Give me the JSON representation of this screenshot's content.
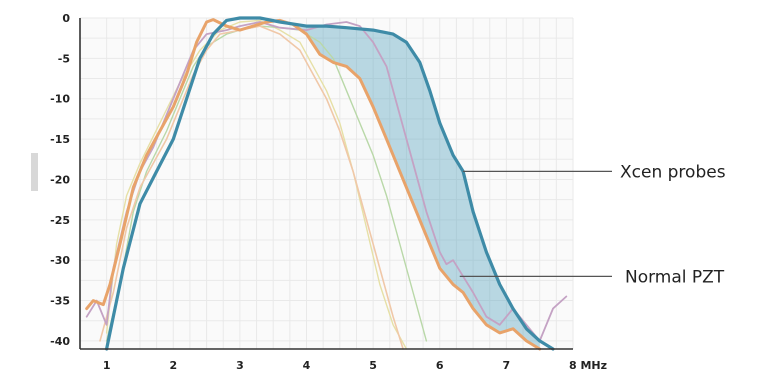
{
  "chart_data": {
    "type": "line",
    "title": "",
    "xlabel": "",
    "ylabel": "",
    "x_unit": "MHz",
    "xlim": [
      0.6,
      8
    ],
    "ylim": [
      -41,
      0
    ],
    "x_ticks": [
      1,
      2,
      3,
      4,
      5,
      6,
      7,
      8
    ],
    "y_ticks": [
      0,
      -5,
      -10,
      -15,
      -20,
      -25,
      -30,
      -35,
      -40
    ],
    "x_tick_labels": [
      "1",
      "2",
      "3",
      "4",
      "5",
      "6",
      "7",
      "8 MHz"
    ],
    "y_tick_labels": [
      "0",
      "-5",
      "-10",
      "-15",
      "-20",
      "-25",
      "-30",
      "-35",
      "-40"
    ],
    "grid": true,
    "shaded_region": "between the Xcen probes curve and the Normal PZT curve",
    "annotations": [
      {
        "text": "Xcen probes",
        "target": "xcen",
        "point": [
          6.35,
          -19
        ]
      },
      {
        "text": "Normal PZT",
        "target": "pzt",
        "point": [
          6.3,
          -32
        ]
      }
    ],
    "series": [
      {
        "key": "xcen",
        "color": "#3e8ba7",
        "points": [
          [
            1.0,
            -41
          ],
          [
            1.1,
            -37
          ],
          [
            1.25,
            -31
          ],
          [
            1.5,
            -23
          ],
          [
            1.75,
            -19
          ],
          [
            2.0,
            -15
          ],
          [
            2.2,
            -10
          ],
          [
            2.4,
            -5
          ],
          [
            2.6,
            -2
          ],
          [
            2.8,
            -0.3
          ],
          [
            3.0,
            0
          ],
          [
            3.3,
            0
          ],
          [
            3.6,
            -0.5
          ],
          [
            4.0,
            -1
          ],
          [
            4.3,
            -1
          ],
          [
            4.6,
            -1.2
          ],
          [
            5.0,
            -1.5
          ],
          [
            5.3,
            -2
          ],
          [
            5.5,
            -3
          ],
          [
            5.7,
            -5.5
          ],
          [
            5.85,
            -9
          ],
          [
            6.0,
            -13
          ],
          [
            6.2,
            -17
          ],
          [
            6.35,
            -19
          ],
          [
            6.5,
            -24
          ],
          [
            6.7,
            -29
          ],
          [
            6.9,
            -33
          ],
          [
            7.1,
            -36
          ],
          [
            7.3,
            -38.5
          ],
          [
            7.5,
            -40
          ],
          [
            7.7,
            -41
          ]
        ]
      },
      {
        "key": "pzt",
        "color": "#e8a36a",
        "points": [
          [
            0.7,
            -36
          ],
          [
            0.8,
            -35
          ],
          [
            0.95,
            -35.5
          ],
          [
            1.05,
            -33
          ],
          [
            1.2,
            -28
          ],
          [
            1.4,
            -21
          ],
          [
            1.6,
            -17
          ],
          [
            1.8,
            -14
          ],
          [
            2.0,
            -11
          ],
          [
            2.2,
            -7
          ],
          [
            2.35,
            -3
          ],
          [
            2.5,
            -0.5
          ],
          [
            2.6,
            -0.2
          ],
          [
            2.8,
            -1
          ],
          [
            3.0,
            -1.5
          ],
          [
            3.2,
            -1
          ],
          [
            3.4,
            -0.5
          ],
          [
            3.6,
            -0.3
          ],
          [
            3.8,
            -0.8
          ],
          [
            4.0,
            -2
          ],
          [
            4.2,
            -4.5
          ],
          [
            4.4,
            -5.5
          ],
          [
            4.6,
            -6
          ],
          [
            4.8,
            -7.5
          ],
          [
            5.0,
            -11
          ],
          [
            5.2,
            -15
          ],
          [
            5.4,
            -19
          ],
          [
            5.6,
            -23
          ],
          [
            5.8,
            -27
          ],
          [
            6.0,
            -31
          ],
          [
            6.2,
            -33
          ],
          [
            6.35,
            -34
          ],
          [
            6.5,
            -36
          ],
          [
            6.7,
            -38
          ],
          [
            6.9,
            -39
          ],
          [
            7.1,
            -38.5
          ],
          [
            7.3,
            -40
          ],
          [
            7.5,
            -41
          ]
        ]
      },
      {
        "key": "mauve",
        "color": "#c4a2c4",
        "points": [
          [
            0.7,
            -37
          ],
          [
            0.85,
            -35
          ],
          [
            1.0,
            -38
          ],
          [
            1.1,
            -31
          ],
          [
            1.3,
            -24
          ],
          [
            1.5,
            -19
          ],
          [
            1.7,
            -16
          ],
          [
            1.9,
            -12
          ],
          [
            2.1,
            -8
          ],
          [
            2.3,
            -4
          ],
          [
            2.5,
            -2
          ],
          [
            2.8,
            -1.5
          ],
          [
            3.0,
            -1
          ],
          [
            3.3,
            -0.5
          ],
          [
            3.6,
            -1.2
          ],
          [
            4.0,
            -1.5
          ],
          [
            4.3,
            -0.8
          ],
          [
            4.6,
            -0.5
          ],
          [
            4.8,
            -1
          ],
          [
            5.0,
            -3
          ],
          [
            5.2,
            -6
          ],
          [
            5.4,
            -12
          ],
          [
            5.6,
            -18
          ],
          [
            5.8,
            -24
          ],
          [
            6.0,
            -29
          ],
          [
            6.1,
            -30.5
          ],
          [
            6.2,
            -30
          ],
          [
            6.35,
            -32
          ],
          [
            6.5,
            -34
          ],
          [
            6.7,
            -37
          ],
          [
            6.9,
            -38
          ],
          [
            7.1,
            -36
          ],
          [
            7.3,
            -38
          ],
          [
            7.5,
            -40
          ],
          [
            7.7,
            -36
          ],
          [
            7.9,
            -34.5
          ]
        ]
      },
      {
        "key": "yellow",
        "color": "#e6e0a6",
        "points": [
          [
            1.0,
            -39
          ],
          [
            1.15,
            -28
          ],
          [
            1.3,
            -22
          ],
          [
            1.5,
            -18
          ],
          [
            1.8,
            -13
          ],
          [
            2.1,
            -8
          ],
          [
            2.4,
            -4
          ],
          [
            2.7,
            -1.5
          ],
          [
            3.0,
            -0.5
          ],
          [
            3.3,
            -0.3
          ],
          [
            3.6,
            -1.5
          ],
          [
            3.9,
            -3
          ],
          [
            4.1,
            -6
          ],
          [
            4.3,
            -9
          ],
          [
            4.5,
            -13
          ],
          [
            4.7,
            -19
          ],
          [
            4.9,
            -26
          ],
          [
            5.1,
            -33
          ],
          [
            5.3,
            -38
          ],
          [
            5.5,
            -41
          ]
        ]
      },
      {
        "key": "green",
        "color": "#b9d8a8",
        "points": [
          [
            1.0,
            -40
          ],
          [
            1.2,
            -33
          ],
          [
            1.4,
            -24
          ],
          [
            1.6,
            -19
          ],
          [
            1.9,
            -14
          ],
          [
            2.1,
            -10
          ],
          [
            2.3,
            -6
          ],
          [
            2.5,
            -3.5
          ],
          [
            2.8,
            -2
          ],
          [
            3.0,
            -1.5
          ],
          [
            3.3,
            -1
          ],
          [
            3.6,
            -1.2
          ],
          [
            3.9,
            -1.5
          ],
          [
            4.2,
            -3
          ],
          [
            4.4,
            -5
          ],
          [
            4.6,
            -9
          ],
          [
            4.8,
            -13
          ],
          [
            5.0,
            -17
          ],
          [
            5.2,
            -22
          ],
          [
            5.4,
            -28
          ],
          [
            5.6,
            -34
          ],
          [
            5.8,
            -40
          ]
        ]
      },
      {
        "key": "peach",
        "color": "#f0c8a8",
        "points": [
          [
            0.9,
            -40
          ],
          [
            1.1,
            -34
          ],
          [
            1.3,
            -26
          ],
          [
            1.5,
            -21
          ],
          [
            1.7,
            -18
          ],
          [
            1.9,
            -15
          ],
          [
            2.1,
            -11
          ],
          [
            2.3,
            -7
          ],
          [
            2.5,
            -4
          ],
          [
            2.7,
            -2
          ],
          [
            3.0,
            -1.5
          ],
          [
            3.3,
            -1
          ],
          [
            3.6,
            -2
          ],
          [
            3.9,
            -4
          ],
          [
            4.1,
            -7
          ],
          [
            4.3,
            -10
          ],
          [
            4.5,
            -14
          ],
          [
            4.7,
            -19
          ],
          [
            4.9,
            -25
          ],
          [
            5.1,
            -31
          ],
          [
            5.3,
            -37
          ],
          [
            5.45,
            -41
          ]
        ]
      }
    ]
  }
}
